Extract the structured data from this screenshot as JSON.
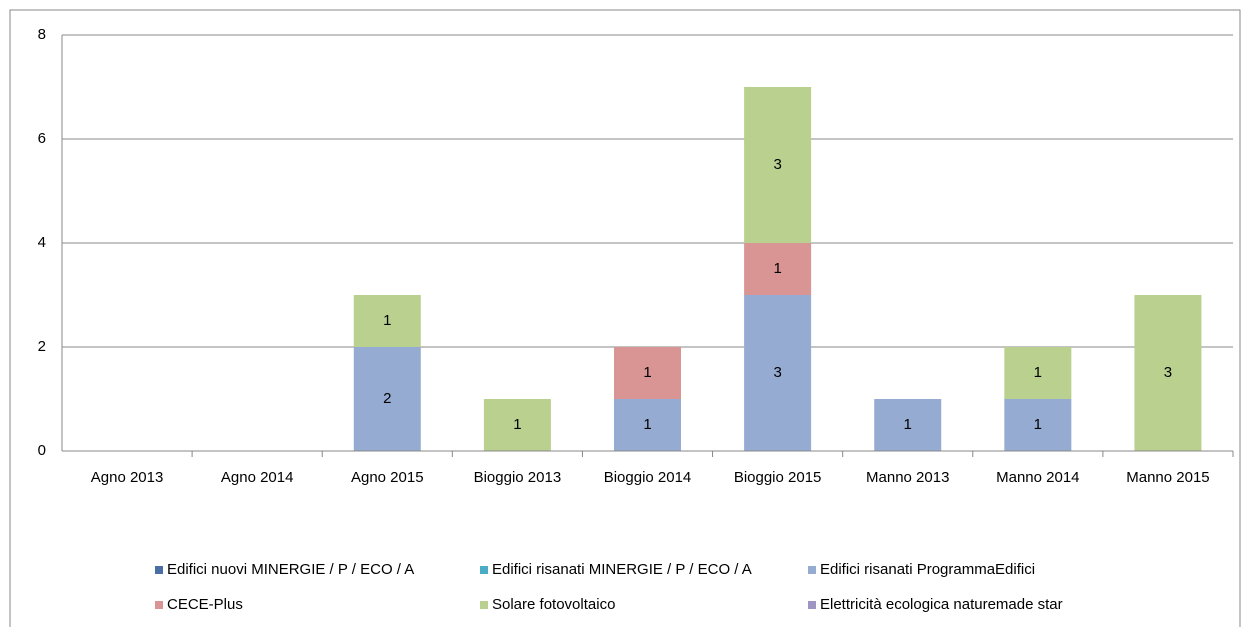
{
  "chart_data": {
    "type": "stacked_bar",
    "categories": [
      "Agno 2013",
      "Agno 2014",
      "Agno 2015",
      "Bioggio 2013",
      "Bioggio 2014",
      "Bioggio 2015",
      "Manno 2013",
      "Manno 2014",
      "Manno 2015"
    ],
    "series": [
      {
        "name": "Edifici nuovi MINERGIE / P / ECO / A",
        "color": "#4a6fa5",
        "values": [
          null,
          null,
          null,
          null,
          null,
          null,
          null,
          null,
          null
        ]
      },
      {
        "name": "Edifici risanati MINERGIE / P / ECO / A",
        "color": "#4bacc6",
        "values": [
          null,
          null,
          null,
          null,
          null,
          null,
          null,
          null,
          null
        ]
      },
      {
        "name": "Edifici risanati ProgrammaEdifici",
        "color": "#95abd2",
        "values": [
          null,
          null,
          2,
          null,
          1,
          3,
          1,
          1,
          null
        ]
      },
      {
        "name": "CECE-Plus",
        "color": "#d99594",
        "values": [
          null,
          null,
          null,
          null,
          1,
          1,
          null,
          null,
          null
        ]
      },
      {
        "name": "Solare fotovoltaico",
        "color": "#b9d08e",
        "values": [
          null,
          null,
          1,
          1,
          null,
          3,
          null,
          1,
          3
        ]
      },
      {
        "name": "Elettricità ecologica naturemade star",
        "color": "#a195c3",
        "values": [
          null,
          null,
          null,
          null,
          null,
          null,
          null,
          null,
          null
        ]
      }
    ],
    "ylim": [
      0,
      8
    ],
    "yticks": [
      0,
      2,
      4,
      6,
      8
    ],
    "grid": true,
    "legend": "bottom"
  }
}
